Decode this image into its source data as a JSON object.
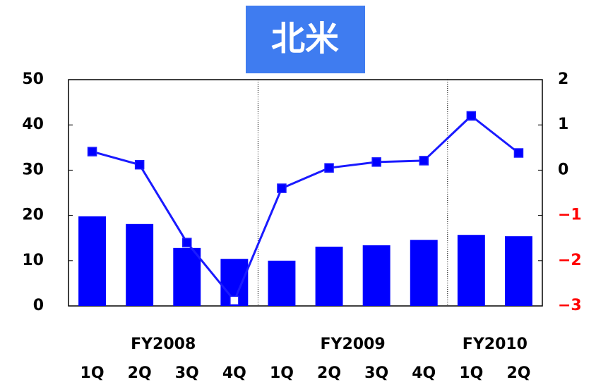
{
  "chart_data": {
    "type": "bar-line",
    "title": "北米",
    "groups": [
      {
        "name": "FY2008",
        "categories": [
          "1Q",
          "2Q",
          "3Q",
          "4Q"
        ]
      },
      {
        "name": "FY2009",
        "categories": [
          "1Q",
          "2Q",
          "3Q",
          "4Q"
        ]
      },
      {
        "name": "FY2010",
        "categories": [
          "1Q",
          "2Q"
        ]
      }
    ],
    "series": [
      {
        "type": "bar",
        "color": "#0000ff",
        "values": [
          19.8,
          18.1,
          12.8,
          10.4,
          10.0,
          13.1,
          13.4,
          14.6,
          15.7,
          15.4
        ]
      },
      {
        "type": "line",
        "axis": "y2",
        "color": "#1a1aff",
        "marker_colors": [
          "#0000ff",
          "#0000ff",
          "#0000ff",
          "#ffffff",
          "#0000ff",
          "#0000ff",
          "#0000ff",
          "#0000ff",
          "#0000ff",
          "#0000ff"
        ],
        "values": [
          0.41,
          0.12,
          -1.6,
          -2.88,
          -0.4,
          0.05,
          0.18,
          0.21,
          1.2,
          0.38
        ]
      }
    ],
    "ylim": [
      0,
      50
    ],
    "yticks": [
      0,
      10,
      20,
      30,
      40,
      50
    ],
    "y2lim": [
      -3,
      2
    ],
    "y2ticks": [
      {
        "value": -3,
        "label": "−3"
      },
      {
        "value": -2,
        "label": "−2"
      },
      {
        "value": -1,
        "label": "−1"
      },
      0,
      1,
      2
    ],
    "y2tick_negative_color": "#ff0000",
    "title_background": "#3f7cf0"
  }
}
